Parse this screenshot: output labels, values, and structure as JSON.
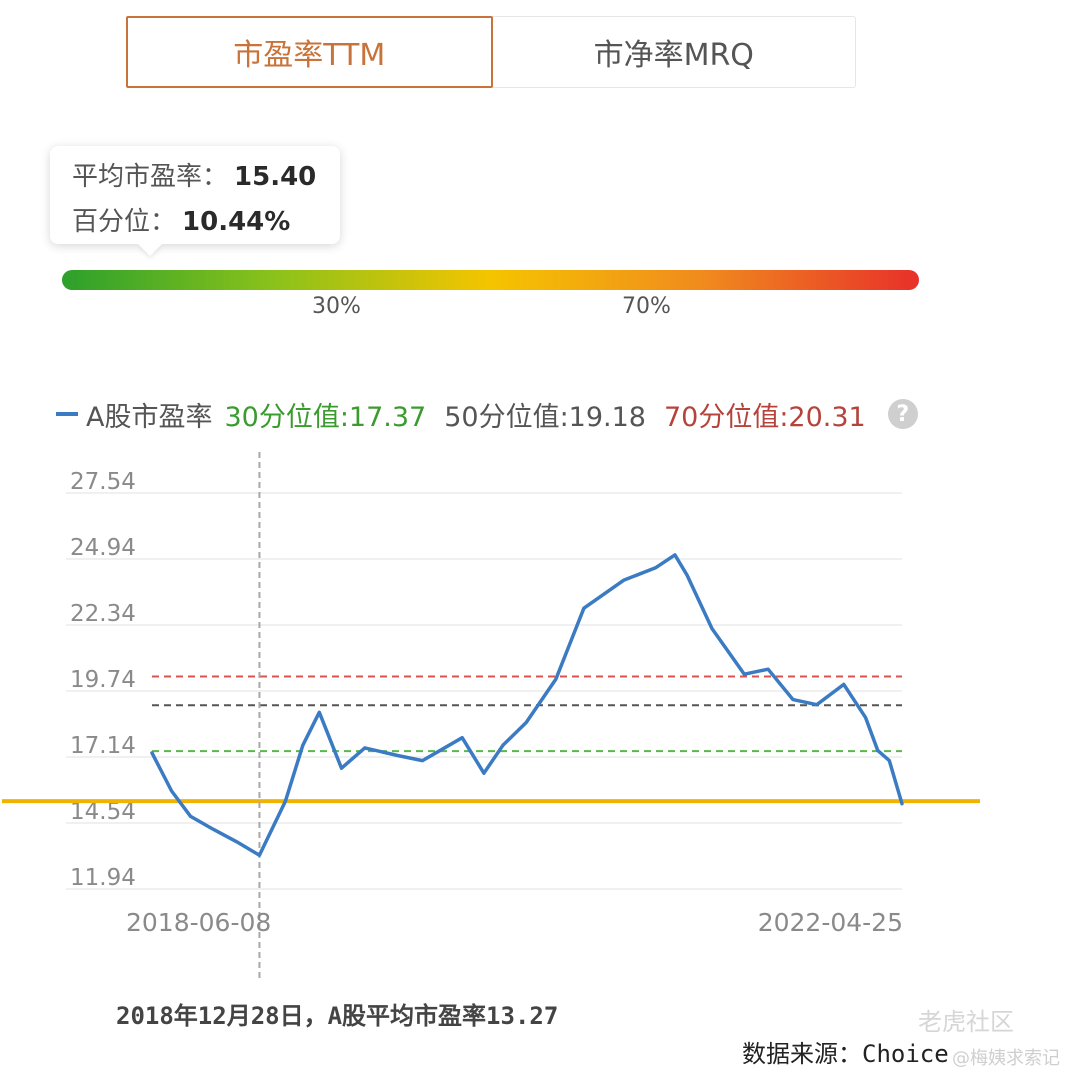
{
  "tabs": [
    {
      "label": "市盈率TTM",
      "active": true
    },
    {
      "label": "市净率MRQ",
      "active": false
    }
  ],
  "tooltip": {
    "avg_label": "平均市盈率：",
    "avg_value": "15.40",
    "pct_label": "百分位：",
    "pct_value": "10.44%"
  },
  "gradient": {
    "label_30": "30%",
    "label_70": "70%",
    "marker_percentile": 10.44
  },
  "legend": {
    "series": "A股市盈率",
    "p30": "30分位值:17.37",
    "p50": "50分位值:19.18",
    "p70": "70分位值:20.31",
    "help": "?"
  },
  "caption": "2018年12月28日，A股平均市盈率13.27",
  "source": "数据来源：Choice",
  "watermark": {
    "brand": "老虎社区",
    "handle": "@梅姨求索记"
  },
  "colors": {
    "line": "#3b7bc4",
    "p30": "#5ab84a",
    "p50": "#555555",
    "p70": "#d9534f",
    "current": "#f0b400",
    "accent": "#c8733a"
  },
  "chart_data": {
    "type": "line",
    "x_start": "2018-06-08",
    "x_end": "2022-04-25",
    "yticks": [
      "27.54",
      "24.94",
      "22.34",
      "19.74",
      "17.14",
      "14.54",
      "11.94"
    ],
    "ylim": [
      11.94,
      27.54
    ],
    "reference_lines": [
      {
        "name": "70分位值",
        "value": 20.31,
        "style": "dashed"
      },
      {
        "name": "50分位值",
        "value": 19.18,
        "style": "dashed"
      },
      {
        "name": "30分位值",
        "value": 17.37,
        "style": "dashed"
      },
      {
        "name": "current",
        "value": 15.4,
        "style": "solid"
      }
    ],
    "marker": {
      "date": "2018-12-28",
      "value": 13.27
    },
    "series": [
      {
        "name": "A股市盈率",
        "dates": [
          "2018-06-08",
          "2018-07-15",
          "2018-08-20",
          "2018-10-01",
          "2018-11-15",
          "2018-12-28",
          "2019-02-15",
          "2019-03-20",
          "2019-04-20",
          "2019-06-01",
          "2019-07-15",
          "2019-09-15",
          "2019-11-01",
          "2020-01-15",
          "2020-02-25",
          "2020-04-01",
          "2020-05-15",
          "2020-07-10",
          "2020-09-01",
          "2020-11-15",
          "2021-01-15",
          "2021-02-20",
          "2021-03-15",
          "2021-05-01",
          "2021-07-01",
          "2021-08-15",
          "2021-10-01",
          "2021-11-15",
          "2022-01-05",
          "2022-02-15",
          "2022-03-10",
          "2022-04-01",
          "2022-04-25"
        ],
        "values": [
          17.3,
          15.8,
          14.8,
          14.3,
          13.8,
          13.27,
          15.4,
          17.6,
          18.9,
          16.7,
          17.5,
          17.2,
          17.0,
          17.9,
          16.5,
          17.6,
          18.5,
          20.2,
          23.0,
          24.1,
          24.6,
          25.1,
          24.3,
          22.2,
          20.4,
          20.6,
          19.4,
          19.2,
          20.0,
          18.7,
          17.4,
          17.0,
          15.3
        ]
      }
    ]
  }
}
